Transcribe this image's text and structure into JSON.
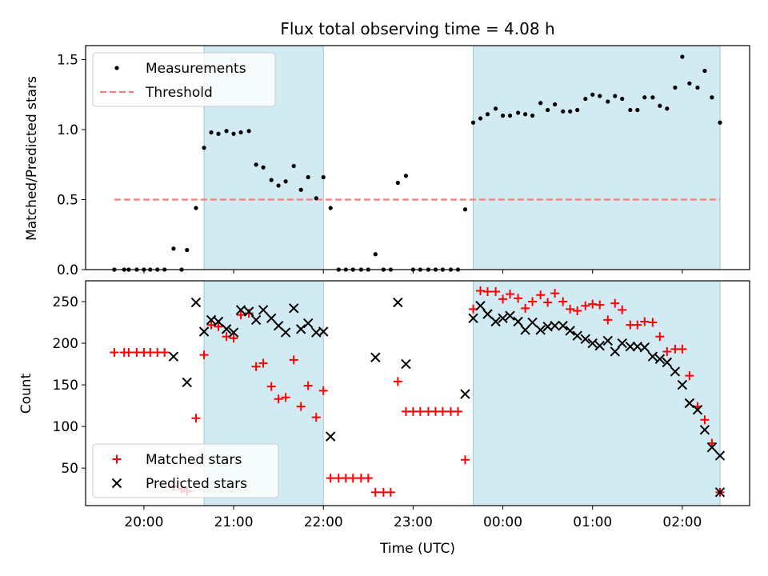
{
  "chart_data": [
    {
      "type": "scatter",
      "title": "Flux total observing time = 4.08 h",
      "xlabel": "",
      "ylabel": "Matched/Predicted stars",
      "x_unit": "hours_after_2000",
      "xlim": [
        -0.65,
        6.75
      ],
      "ylim": [
        0,
        1.6
      ],
      "yticks": [
        0.0,
        0.5,
        1.0,
        1.5
      ],
      "ytick_labels": [
        "0.0",
        "0.5",
        "1.0",
        "1.5"
      ],
      "legend": {
        "placement": "upper left",
        "entries": [
          "Measurements",
          "Threshold"
        ]
      },
      "threshold": {
        "name": "Threshold",
        "value": 0.5,
        "x_range": [
          -0.33,
          6.42
        ],
        "color": "#f08080"
      },
      "shaded_regions": [
        [
          0.67,
          2.0
        ],
        [
          3.67,
          6.42
        ]
      ],
      "shade_color": "#add8e6",
      "series": [
        {
          "name": "Measurements",
          "color": "#000000",
          "points": [
            [
              -0.33,
              0.0
            ],
            [
              -0.22,
              0.0
            ],
            [
              -0.17,
              0.0
            ],
            [
              -0.08,
              0.0
            ],
            [
              0.0,
              0.0
            ],
            [
              0.07,
              0.0
            ],
            [
              0.15,
              0.0
            ],
            [
              0.23,
              0.0
            ],
            [
              0.33,
              0.15
            ],
            [
              0.42,
              0.0
            ],
            [
              0.48,
              0.14
            ],
            [
              0.58,
              0.44
            ],
            [
              0.67,
              0.87
            ],
            [
              0.75,
              0.98
            ],
            [
              0.83,
              0.97
            ],
            [
              0.92,
              0.99
            ],
            [
              1.0,
              0.97
            ],
            [
              1.08,
              0.98
            ],
            [
              1.17,
              0.99
            ],
            [
              1.25,
              0.75
            ],
            [
              1.33,
              0.73
            ],
            [
              1.42,
              0.64
            ],
            [
              1.5,
              0.6
            ],
            [
              1.58,
              0.63
            ],
            [
              1.67,
              0.74
            ],
            [
              1.75,
              0.57
            ],
            [
              1.83,
              0.66
            ],
            [
              1.92,
              0.51
            ],
            [
              2.0,
              0.66
            ],
            [
              2.08,
              0.44
            ],
            [
              2.17,
              0.0
            ],
            [
              2.25,
              0.0
            ],
            [
              2.33,
              0.0
            ],
            [
              2.42,
              0.0
            ],
            [
              2.5,
              0.0
            ],
            [
              2.58,
              0.11
            ],
            [
              2.67,
              0.0
            ],
            [
              2.75,
              0.0
            ],
            [
              2.83,
              0.62
            ],
            [
              2.92,
              0.67
            ],
            [
              3.0,
              0.0
            ],
            [
              3.08,
              0.0
            ],
            [
              3.17,
              0.0
            ],
            [
              3.25,
              0.0
            ],
            [
              3.33,
              0.0
            ],
            [
              3.42,
              0.0
            ],
            [
              3.5,
              0.0
            ],
            [
              3.58,
              0.43
            ],
            [
              3.67,
              1.05
            ],
            [
              3.75,
              1.08
            ],
            [
              3.83,
              1.11
            ],
            [
              3.92,
              1.15
            ],
            [
              4.0,
              1.1
            ],
            [
              4.08,
              1.1
            ],
            [
              4.17,
              1.12
            ],
            [
              4.25,
              1.11
            ],
            [
              4.33,
              1.1
            ],
            [
              4.42,
              1.19
            ],
            [
              4.5,
              1.14
            ],
            [
              4.58,
              1.18
            ],
            [
              4.67,
              1.13
            ],
            [
              4.75,
              1.13
            ],
            [
              4.83,
              1.14
            ],
            [
              4.92,
              1.22
            ],
            [
              5.0,
              1.25
            ],
            [
              5.08,
              1.24
            ],
            [
              5.17,
              1.2
            ],
            [
              5.25,
              1.24
            ],
            [
              5.33,
              1.22
            ],
            [
              5.42,
              1.14
            ],
            [
              5.5,
              1.14
            ],
            [
              5.58,
              1.23
            ],
            [
              5.67,
              1.23
            ],
            [
              5.75,
              1.17
            ],
            [
              5.83,
              1.15
            ],
            [
              5.92,
              1.3
            ],
            [
              6.0,
              1.52
            ],
            [
              6.08,
              1.33
            ],
            [
              6.17,
              1.3
            ],
            [
              6.25,
              1.42
            ],
            [
              6.33,
              1.23
            ],
            [
              6.42,
              1.05
            ]
          ]
        }
      ]
    },
    {
      "type": "scatter",
      "title": "",
      "xlabel": "Time (UTC)",
      "ylabel": "Count",
      "x_unit": "hours_after_2000",
      "xlim": [
        -0.65,
        6.75
      ],
      "ylim": [
        5,
        275
      ],
      "yticks": [
        50,
        100,
        150,
        200,
        250
      ],
      "ytick_labels": [
        "50",
        "100",
        "150",
        "200",
        "250"
      ],
      "xticks": [
        0,
        1,
        2,
        3,
        4,
        5,
        6
      ],
      "xtick_labels": [
        "20:00",
        "21:00",
        "22:00",
        "23:00",
        "00:00",
        "01:00",
        "02:00"
      ],
      "legend": {
        "placement": "lower left",
        "entries": [
          "Matched stars",
          "Predicted stars"
        ]
      },
      "shaded_regions": [
        [
          0.67,
          2.0
        ],
        [
          3.67,
          6.42
        ]
      ],
      "shade_color": "#add8e6",
      "series": [
        {
          "name": "Matched stars",
          "marker": "plus",
          "color": "#ff0000",
          "points": [
            [
              -0.33,
              189
            ],
            [
              -0.22,
              189
            ],
            [
              -0.17,
              189
            ],
            [
              -0.08,
              189
            ],
            [
              0.0,
              189
            ],
            [
              0.07,
              189
            ],
            [
              0.15,
              189
            ],
            [
              0.23,
              189
            ],
            [
              0.33,
              28
            ],
            [
              0.42,
              25
            ],
            [
              0.48,
              22
            ],
            [
              0.58,
              110
            ],
            [
              0.67,
              186
            ],
            [
              0.75,
              222
            ],
            [
              0.83,
              220
            ],
            [
              0.92,
              208
            ],
            [
              1.0,
              206
            ],
            [
              1.08,
              234
            ],
            [
              1.17,
              236
            ],
            [
              1.25,
              172
            ],
            [
              1.33,
              176
            ],
            [
              1.42,
              148
            ],
            [
              1.5,
              133
            ],
            [
              1.58,
              135
            ],
            [
              1.67,
              180
            ],
            [
              1.75,
              124
            ],
            [
              1.83,
              149
            ],
            [
              1.92,
              111
            ],
            [
              2.0,
              143
            ],
            [
              2.08,
              38
            ],
            [
              2.17,
              38
            ],
            [
              2.25,
              38
            ],
            [
              2.33,
              38
            ],
            [
              2.42,
              38
            ],
            [
              2.5,
              38
            ],
            [
              2.58,
              21
            ],
            [
              2.67,
              21
            ],
            [
              2.75,
              21
            ],
            [
              2.83,
              154
            ],
            [
              2.92,
              118
            ],
            [
              3.0,
              118
            ],
            [
              3.08,
              118
            ],
            [
              3.17,
              118
            ],
            [
              3.25,
              118
            ],
            [
              3.33,
              118
            ],
            [
              3.42,
              118
            ],
            [
              3.5,
              118
            ],
            [
              3.58,
              60
            ],
            [
              3.67,
              241
            ],
            [
              3.75,
              263
            ],
            [
              3.83,
              262
            ],
            [
              3.92,
              262
            ],
            [
              4.0,
              253
            ],
            [
              4.08,
              259
            ],
            [
              4.17,
              254
            ],
            [
              4.25,
              242
            ],
            [
              4.33,
              250
            ],
            [
              4.42,
              258
            ],
            [
              4.5,
              249
            ],
            [
              4.58,
              260
            ],
            [
              4.67,
              250
            ],
            [
              4.75,
              241
            ],
            [
              4.83,
              239
            ],
            [
              4.92,
              245
            ],
            [
              5.0,
              247
            ],
            [
              5.08,
              246
            ],
            [
              5.17,
              228
            ],
            [
              5.25,
              248
            ],
            [
              5.33,
              240
            ],
            [
              5.42,
              222
            ],
            [
              5.5,
              222
            ],
            [
              5.58,
              226
            ],
            [
              5.67,
              225
            ],
            [
              5.75,
              208
            ],
            [
              5.83,
              190
            ],
            [
              5.92,
              193
            ],
            [
              6.0,
              193
            ],
            [
              6.08,
              161
            ],
            [
              6.17,
              124
            ],
            [
              6.25,
              108
            ],
            [
              6.33,
              80
            ],
            [
              6.42,
              21
            ]
          ]
        },
        {
          "name": "Predicted stars",
          "marker": "x",
          "color": "#000000",
          "points": [
            [
              0.33,
              184
            ],
            [
              0.48,
              153
            ],
            [
              0.58,
              249
            ],
            [
              0.67,
              214
            ],
            [
              0.75,
              228
            ],
            [
              0.83,
              226
            ],
            [
              0.92,
              217
            ],
            [
              1.0,
              213
            ],
            [
              1.08,
              240
            ],
            [
              1.17,
              238
            ],
            [
              1.25,
              228
            ],
            [
              1.33,
              240
            ],
            [
              1.42,
              230
            ],
            [
              1.5,
              221
            ],
            [
              1.58,
              213
            ],
            [
              1.67,
              242
            ],
            [
              1.75,
              217
            ],
            [
              1.83,
              224
            ],
            [
              1.92,
              213
            ],
            [
              2.0,
              214
            ],
            [
              2.08,
              88
            ],
            [
              2.58,
              183
            ],
            [
              2.83,
              249
            ],
            [
              2.92,
              175
            ],
            [
              3.58,
              139
            ],
            [
              3.67,
              230
            ],
            [
              3.75,
              245
            ],
            [
              3.83,
              235
            ],
            [
              3.92,
              226
            ],
            [
              4.0,
              230
            ],
            [
              4.08,
              233
            ],
            [
              4.17,
              226
            ],
            [
              4.25,
              216
            ],
            [
              4.33,
              225
            ],
            [
              4.42,
              216
            ],
            [
              4.5,
              220
            ],
            [
              4.58,
              221
            ],
            [
              4.67,
              221
            ],
            [
              4.75,
              215
            ],
            [
              4.83,
              209
            ],
            [
              4.92,
              205
            ],
            [
              5.0,
              200
            ],
            [
              5.08,
              197
            ],
            [
              5.17,
              203
            ],
            [
              5.25,
              190
            ],
            [
              5.33,
              200
            ],
            [
              5.42,
              196
            ],
            [
              5.5,
              196
            ],
            [
              5.58,
              195
            ],
            [
              5.67,
              184
            ],
            [
              5.75,
              181
            ],
            [
              5.83,
              177
            ],
            [
              5.92,
              166
            ],
            [
              6.0,
              150
            ],
            [
              6.08,
              128
            ],
            [
              6.17,
              120
            ],
            [
              6.25,
              96
            ],
            [
              6.33,
              75
            ],
            [
              6.42,
              65
            ],
            [
              6.42,
              21
            ]
          ]
        }
      ]
    }
  ]
}
